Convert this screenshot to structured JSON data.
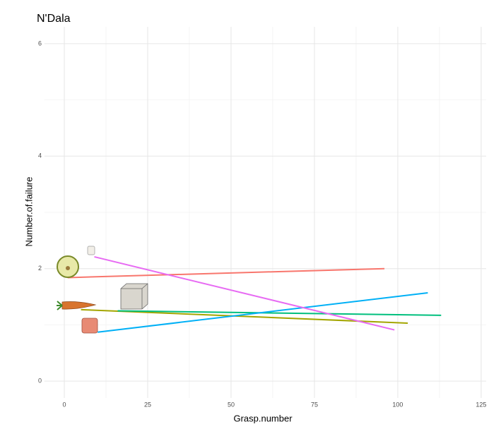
{
  "chart_data": {
    "type": "line",
    "title": "N'Dala",
    "x_label": "Grasp.number",
    "y_label": "Number.of.failure",
    "xlim": [
      -6,
      126.5
    ],
    "ylim": [
      -0.3,
      6.3
    ],
    "xticks": [
      0,
      25,
      50,
      75,
      100,
      125
    ],
    "yticks": [
      0,
      2,
      4,
      6
    ],
    "grid": true,
    "series": [
      {
        "color": "#f8766d",
        "x": [
          1,
          96
        ],
        "values": [
          1.84,
          2.0
        ]
      },
      {
        "color": "#a3a500",
        "x": [
          5,
          103
        ],
        "values": [
          1.27,
          1.03
        ]
      },
      {
        "color": "#00bf7d",
        "x": [
          16,
          113
        ],
        "values": [
          1.25,
          1.17
        ]
      },
      {
        "color": "#00b0f6",
        "x": [
          10,
          109
        ],
        "values": [
          0.87,
          1.57
        ]
      },
      {
        "color": "#e76bf3",
        "x": [
          9,
          99
        ],
        "values": [
          2.21,
          0.91
        ]
      }
    ]
  }
}
